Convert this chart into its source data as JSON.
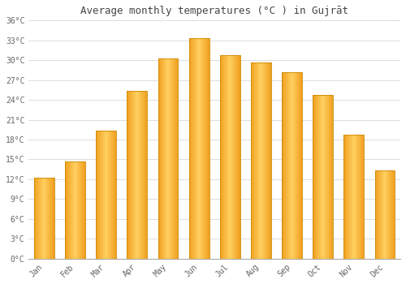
{
  "title": "Average monthly temperatures (°C ) in Gujrāt",
  "months": [
    "Jan",
    "Feb",
    "Mar",
    "Apr",
    "May",
    "Jun",
    "Jul",
    "Aug",
    "Sep",
    "Oct",
    "Nov",
    "Dec"
  ],
  "values": [
    12.2,
    14.7,
    19.3,
    25.3,
    30.3,
    33.3,
    30.8,
    29.7,
    28.2,
    24.7,
    18.7,
    13.3
  ],
  "bar_color_center": "#FFD060",
  "bar_color_edge": "#F0A020",
  "bar_border_color": "#CC8800",
  "ylim": [
    0,
    36
  ],
  "yticks": [
    0,
    3,
    6,
    9,
    12,
    15,
    18,
    21,
    24,
    27,
    30,
    33,
    36
  ],
  "ytick_labels": [
    "0°C",
    "3°C",
    "6°C",
    "9°C",
    "12°C",
    "15°C",
    "18°C",
    "21°C",
    "24°C",
    "27°C",
    "30°C",
    "33°C",
    "36°C"
  ],
  "background_color": "#ffffff",
  "grid_color": "#dddddd",
  "font_color": "#666666",
  "title_color": "#444444",
  "bar_width": 0.65
}
